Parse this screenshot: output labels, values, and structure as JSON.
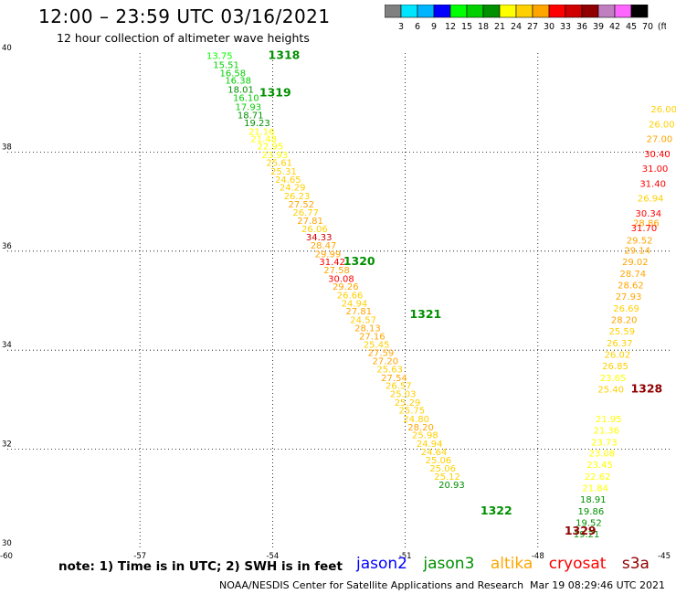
{
  "header": {
    "title": "12:00 – 23:59 UTC 03/16/2021",
    "subtitle": "12 hour collection of altimeter wave heights"
  },
  "colorbar": {
    "labels": [
      "3",
      "6",
      "9",
      "12",
      "15",
      "18",
      "21",
      "24",
      "27",
      "30",
      "33",
      "36",
      "39",
      "42",
      "45",
      "70",
      "(ft)"
    ],
    "colors": [
      "#808080",
      "#00e5ff",
      "#00b4ff",
      "#0000ff",
      "#00ff00",
      "#00d000",
      "#009000",
      "#ffff00",
      "#ffd000",
      "#ffa500",
      "#ff0000",
      "#d00000",
      "#900000",
      "#c080c0",
      "#ff66ff",
      "#000000"
    ]
  },
  "footer": {
    "note": "note: 1) Time is in UTC; 2) SWH is in feet",
    "satellites": [
      {
        "name": "jason2",
        "color": "#0000ff"
      },
      {
        "name": "jason3",
        "color": "#009000"
      },
      {
        "name": "altika",
        "color": "#ffa500"
      },
      {
        "name": "cryosat",
        "color": "#ff0000"
      },
      {
        "name": "s3a",
        "color": "#900000"
      }
    ],
    "credit": "NOAA/NESDIS Center for Satellite Applications and Research",
    "timestamp": "Mar 19 08:29:46 UTC 2021"
  },
  "chart_data": {
    "type": "scatter",
    "title": "12:00 – 23:59 UTC 03/16/2021",
    "subtitle": "12 hour collection of altimeter wave heights",
    "xlim": [
      -60,
      -45
    ],
    "ylim": [
      30,
      40
    ],
    "x_ticks": [
      -60,
      -57,
      -54,
      -51,
      -48,
      -45
    ],
    "y_ticks": [
      30,
      32,
      34,
      36,
      38,
      40
    ],
    "x_tick_labels": [
      "-60",
      "-57",
      "-54",
      "-51",
      "-48",
      "-45"
    ],
    "y_tick_labels": [
      "30",
      "32",
      "34",
      "36",
      "38",
      "40"
    ],
    "color_scale_ft": [
      3,
      6,
      9,
      12,
      15,
      18,
      21,
      24,
      27,
      30,
      33,
      36,
      39,
      42,
      45,
      70
    ],
    "grid": true,
    "tracks": [
      {
        "satellite": "jason3",
        "pass_labels": [
          {
            "text": "1318",
            "x": -54.1,
            "y": 39.88
          },
          {
            "text": "1319",
            "x": -54.3,
            "y": 39.12
          },
          {
            "text": "1320",
            "x": -52.4,
            "y": 35.72
          },
          {
            "text": "1321",
            "x": -50.9,
            "y": 34.65
          },
          {
            "text": "1322",
            "x": -49.3,
            "y": 30.68
          }
        ],
        "points": [
          {
            "x": -55.2,
            "y": 39.88,
            "v": 13.75
          },
          {
            "x": -55.05,
            "y": 39.7,
            "v": 15.51
          },
          {
            "x": -54.9,
            "y": 39.53,
            "v": 16.58
          },
          {
            "x": -54.78,
            "y": 39.38,
            "v": 16.38
          },
          {
            "x": -54.72,
            "y": 39.2,
            "v": 18.01
          },
          {
            "x": -54.6,
            "y": 39.03,
            "v": 16.1
          },
          {
            "x": -54.55,
            "y": 38.85,
            "v": 17.93
          },
          {
            "x": -54.5,
            "y": 38.68,
            "v": 18.71
          },
          {
            "x": -54.35,
            "y": 38.52,
            "v": 19.23
          },
          {
            "x": -54.25,
            "y": 38.35,
            "v": 21.16
          },
          {
            "x": -54.2,
            "y": 38.2,
            "v": 21.48
          },
          {
            "x": -54.05,
            "y": 38.05,
            "v": 22.95
          },
          {
            "x": -53.95,
            "y": 37.88,
            "v": 23.93
          },
          {
            "x": -53.85,
            "y": 37.72,
            "v": 25.61
          },
          {
            "x": -53.75,
            "y": 37.55,
            "v": 25.31
          },
          {
            "x": -53.65,
            "y": 37.38,
            "v": 24.65
          },
          {
            "x": -53.55,
            "y": 37.22,
            "v": 24.29
          },
          {
            "x": -53.45,
            "y": 37.05,
            "v": 26.23
          },
          {
            "x": -53.35,
            "y": 36.88,
            "v": 27.52
          },
          {
            "x": -53.25,
            "y": 36.72,
            "v": 26.77
          },
          {
            "x": -53.15,
            "y": 36.55,
            "v": 27.81
          },
          {
            "x": -53.05,
            "y": 36.38,
            "v": 26.06
          },
          {
            "x": -52.95,
            "y": 36.22,
            "v": 34.33
          },
          {
            "x": -52.85,
            "y": 36.05,
            "v": 28.47
          },
          {
            "x": -52.75,
            "y": 35.88,
            "v": 29.99
          },
          {
            "x": -52.65,
            "y": 35.72,
            "v": 31.42
          },
          {
            "x": -52.55,
            "y": 35.55,
            "v": 27.58
          },
          {
            "x": -52.45,
            "y": 35.38,
            "v": 30.08
          },
          {
            "x": -52.35,
            "y": 35.22,
            "v": 29.26
          },
          {
            "x": -52.25,
            "y": 35.05,
            "v": 26.66
          },
          {
            "x": -52.15,
            "y": 34.88,
            "v": 24.94
          },
          {
            "x": -52.05,
            "y": 34.72,
            "v": 27.81
          },
          {
            "x": -51.95,
            "y": 34.55,
            "v": 24.57
          },
          {
            "x": -51.85,
            "y": 34.38,
            "v": 28.13
          },
          {
            "x": -51.75,
            "y": 34.22,
            "v": 27.16
          },
          {
            "x": -51.65,
            "y": 34.05,
            "v": 25.45
          },
          {
            "x": -51.55,
            "y": 33.88,
            "v": 27.59
          },
          {
            "x": -51.45,
            "y": 33.72,
            "v": 27.2
          },
          {
            "x": -51.35,
            "y": 33.55,
            "v": 25.63
          },
          {
            "x": -51.25,
            "y": 33.38,
            "v": 27.54
          },
          {
            "x": -51.15,
            "y": 33.22,
            "v": 26.57
          },
          {
            "x": -51.05,
            "y": 33.05,
            "v": 25.03
          },
          {
            "x": -50.95,
            "y": 32.88,
            "v": 25.29
          },
          {
            "x": -50.85,
            "y": 32.72,
            "v": 25.75
          },
          {
            "x": -50.75,
            "y": 32.55,
            "v": 24.8
          },
          {
            "x": -50.65,
            "y": 32.38,
            "v": 28.2
          },
          {
            "x": -50.55,
            "y": 32.22,
            "v": 25.98
          },
          {
            "x": -50.45,
            "y": 32.05,
            "v": 24.94
          },
          {
            "x": -50.35,
            "y": 31.88,
            "v": 24.64
          },
          {
            "x": -50.25,
            "y": 31.72,
            "v": 25.06
          },
          {
            "x": -50.15,
            "y": 31.55,
            "v": 25.06
          },
          {
            "x": -50.05,
            "y": 31.38,
            "v": 25.12
          },
          {
            "x": -49.95,
            "y": 31.22,
            "v": 20.93
          }
        ]
      },
      {
        "satellite": "s3a",
        "pass_labels": [
          {
            "text": "1328",
            "x": -45.9,
            "y": 33.15
          },
          {
            "text": "1329",
            "x": -47.4,
            "y": 30.28
          }
        ],
        "points": [
          {
            "x": -45.15,
            "y": 38.8,
            "v": 26.0
          },
          {
            "x": -45.2,
            "y": 38.5,
            "v": 26.0
          },
          {
            "x": -45.25,
            "y": 38.2,
            "v": 27.0
          },
          {
            "x": -45.3,
            "y": 37.9,
            "v": 30.4
          },
          {
            "x": -45.35,
            "y": 37.6,
            "v": 31.0
          },
          {
            "x": -45.4,
            "y": 37.3,
            "v": 31.4
          },
          {
            "x": -45.45,
            "y": 37.0,
            "v": 26.94
          },
          {
            "x": -45.5,
            "y": 36.7,
            "v": 30.34
          },
          {
            "x": -45.55,
            "y": 36.5,
            "v": 28.86
          },
          {
            "x": -45.6,
            "y": 36.4,
            "v": 31.7
          },
          {
            "x": -45.7,
            "y": 36.15,
            "v": 29.52
          },
          {
            "x": -45.75,
            "y": 35.95,
            "v": 29.14
          },
          {
            "x": -45.8,
            "y": 35.72,
            "v": 29.02
          },
          {
            "x": -45.85,
            "y": 35.48,
            "v": 28.74
          },
          {
            "x": -45.9,
            "y": 35.25,
            "v": 28.62
          },
          {
            "x": -45.95,
            "y": 35.02,
            "v": 27.93
          },
          {
            "x": -46.0,
            "y": 34.78,
            "v": 26.69
          },
          {
            "x": -46.05,
            "y": 34.55,
            "v": 28.2
          },
          {
            "x": -46.1,
            "y": 34.32,
            "v": 25.59
          },
          {
            "x": -46.15,
            "y": 34.08,
            "v": 26.37
          },
          {
            "x": -46.2,
            "y": 33.85,
            "v": 26.02
          },
          {
            "x": -46.25,
            "y": 33.62,
            "v": 26.85
          },
          {
            "x": -46.3,
            "y": 33.38,
            "v": 23.65
          },
          {
            "x": -46.35,
            "y": 33.15,
            "v": 25.4
          },
          {
            "x": -46.4,
            "y": 32.55,
            "v": 21.95
          },
          {
            "x": -46.45,
            "y": 32.32,
            "v": 21.36
          },
          {
            "x": -46.5,
            "y": 32.08,
            "v": 23.73
          },
          {
            "x": -46.55,
            "y": 31.85,
            "v": 23.08
          },
          {
            "x": -46.6,
            "y": 31.62,
            "v": 23.45
          },
          {
            "x": -46.65,
            "y": 31.38,
            "v": 22.62
          },
          {
            "x": -46.7,
            "y": 31.15,
            "v": 21.84
          },
          {
            "x": -46.75,
            "y": 30.92,
            "v": 18.91
          },
          {
            "x": -46.8,
            "y": 30.68,
            "v": 19.86
          },
          {
            "x": -46.85,
            "y": 30.45,
            "v": 19.52
          },
          {
            "x": -46.9,
            "y": 30.22,
            "v": 19.21
          }
        ]
      }
    ]
  }
}
